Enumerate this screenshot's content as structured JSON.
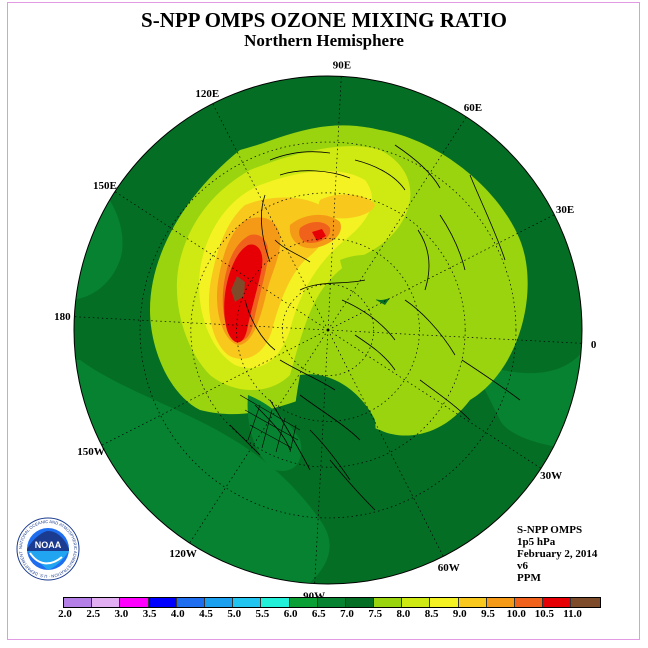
{
  "header": {
    "title": "S-NPP OMPS OZONE MIXING RATIO",
    "subtitle": "Northern Hemisphere"
  },
  "longitude_labels": [
    "90E",
    "60E",
    "30E",
    "0",
    "30W",
    "60W",
    "90W",
    "120W",
    "150W",
    "180",
    "150E",
    "120E"
  ],
  "info": {
    "instrument": "S-NPP OMPS",
    "level": "1p5 hPa",
    "date": "February 2, 2014",
    "version": "v6",
    "units": "PPM"
  },
  "logo": {
    "name": "NOAA",
    "ring_text": "NATIONAL OCEANIC AND ATMOSPHERIC ADMINISTRATION · U.S. DEPARTMENT OF COMMERCE"
  },
  "colorbar": {
    "labels": [
      "2.0",
      "2.5",
      "3.0",
      "3.5",
      "4.0",
      "4.5",
      "5.0",
      "5.5",
      "6.0",
      "6.5",
      "7.0",
      "7.5",
      "8.0",
      "8.5",
      "9.0",
      "9.5",
      "10.0",
      "10.5",
      "11.0"
    ],
    "colors": [
      "#b57fe8",
      "#e2b0f2",
      "#ff00ff",
      "#0000ff",
      "#1f6ef0",
      "#1aa0ee",
      "#22c4f0",
      "#22f0d8",
      "#0aa036",
      "#078230",
      "#056e25",
      "#9ad40f",
      "#cfea12",
      "#f4f222",
      "#f8c81c",
      "#f59a17",
      "#f0621c",
      "#e60006",
      "#7d4a2a"
    ]
  }
}
